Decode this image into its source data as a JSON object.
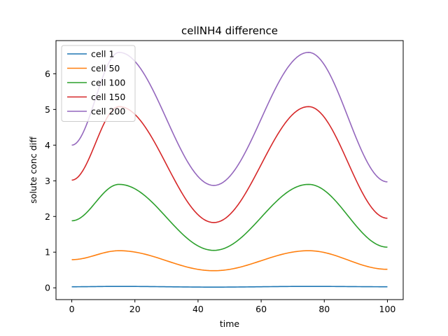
{
  "chart_data": {
    "type": "line",
    "title": "cellNH4 difference",
    "xlabel": "time",
    "ylabel": "solute conc diff",
    "xlim": [
      -5,
      105
    ],
    "ylim": [
      -0.33,
      6.93
    ],
    "xticks": [
      0,
      20,
      40,
      60,
      80,
      100
    ],
    "yticks": [
      0,
      1,
      2,
      3,
      4,
      5,
      6
    ],
    "grid": false,
    "legend_position": "upper-left",
    "series": [
      {
        "name": "cell 1",
        "color": "#1f77b4",
        "x": [
          0,
          15,
          45,
          75,
          100
        ],
        "y": [
          0.03,
          0.04,
          0.02,
          0.04,
          0.03
        ]
      },
      {
        "name": "cell 50",
        "color": "#ff7f0e",
        "x": [
          0,
          15,
          45,
          75,
          100
        ],
        "y": [
          0.79,
          1.04,
          0.48,
          1.04,
          0.52
        ]
      },
      {
        "name": "cell 100",
        "color": "#2ca02c",
        "x": [
          0,
          15,
          45,
          75,
          100
        ],
        "y": [
          1.88,
          2.9,
          1.05,
          2.9,
          1.14
        ]
      },
      {
        "name": "cell 150",
        "color": "#d62728",
        "x": [
          0,
          15,
          45,
          75,
          100
        ],
        "y": [
          3.02,
          5.08,
          1.83,
          5.08,
          1.95
        ]
      },
      {
        "name": "cell 200",
        "color": "#9467bd",
        "x": [
          0,
          15,
          45,
          75,
          100
        ],
        "y": [
          4.0,
          6.6,
          2.87,
          6.6,
          2.97
        ]
      }
    ]
  }
}
